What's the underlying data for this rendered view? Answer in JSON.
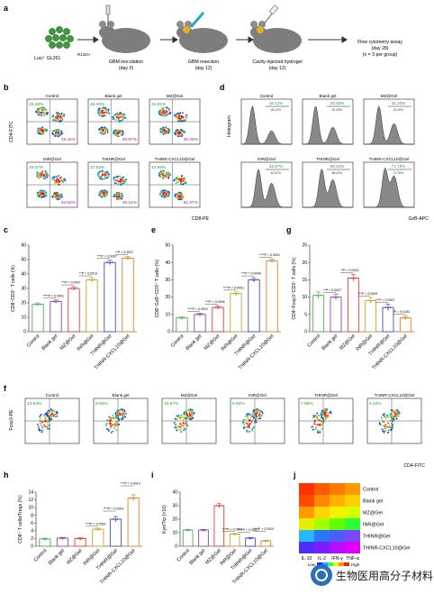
{
  "panel_letters": {
    "a": "a",
    "b": "b",
    "c": "c",
    "d": "d",
    "e": "e",
    "f": "f",
    "g": "g",
    "h": "h",
    "i": "i",
    "j": "j"
  },
  "schematic": {
    "cells_label": "Luci⁺ GL261",
    "cells_sup": "R132H",
    "steps": [
      {
        "title": "GBM inoculation",
        "sub": "(day 0)"
      },
      {
        "title": "GBM resection",
        "sub": "(day 12)"
      },
      {
        "title": "Cavity-injected hydrogel",
        "sub": "(day 12)"
      }
    ],
    "final_title": "Flow cytometry assay",
    "final_sub1": "(day 28)",
    "final_sub2": "(n = 3 per group)"
  },
  "flow_b": {
    "y_axis": "CD4-FITC",
    "x_axis": "CD8-PE",
    "plots": [
      {
        "title": "Control",
        "q_top": "25.28%",
        "q_bot": "19.42%"
      },
      {
        "title": "Blank gel",
        "q_top": "29.33%",
        "q_bot": "20.97%"
      },
      {
        "title": "MZ@Gel",
        "q_top": "31.81%",
        "q_bot": "30.26%"
      },
      {
        "title": "INR@Gel",
        "q_top": "34.07%",
        "q_bot": "34.50%"
      },
      {
        "title": "THINR@Gel",
        "q_top": "37.83%",
        "q_bot": "48.14%"
      },
      {
        "title": "THINR-CXCL10@Gel",
        "q_top": "42.68%",
        "q_bot": "51.67%"
      }
    ]
  },
  "hist_d": {
    "y_axis": "Histogram",
    "x_axis": "GzB-APC",
    "plots": [
      {
        "title": "Control",
        "top": "18.12%",
        "sub": "18.12%"
      },
      {
        "title": "Blank gel",
        "top": "20.43%",
        "sub": "20.43%"
      },
      {
        "title": "MZ@Gel",
        "top": "31.20%",
        "sub": "31.20%"
      },
      {
        "title": "INR@Gel",
        "top": "42.87%",
        "sub": "42.87%"
      },
      {
        "title": "THINR@Gel",
        "top": "58.42%",
        "sub": "58.42%"
      },
      {
        "title": "THINR-CXCL10@Gel",
        "top": "71.76%",
        "sub": "71.76%"
      }
    ]
  },
  "groups": [
    "Control",
    "Blank gel",
    "MZ@Gel",
    "INR@Gel",
    "THINR@Gel",
    "THINR-CXCL10@Gel"
  ],
  "colors": [
    "#4caf50",
    "#8e44ad",
    "#e53935",
    "#c9a227",
    "#3f51b5",
    "#e67e22"
  ],
  "chart_data": [
    {
      "type": "bar",
      "panel": "c",
      "ylabel": "CD8⁺CD3⁺ T cells (%)",
      "ylim": [
        0,
        60
      ],
      "yticks": [
        "0",
        "10",
        "20",
        "30",
        "40",
        "50",
        "60"
      ],
      "values": [
        19,
        21,
        30,
        36,
        48,
        51
      ],
      "errors": [
        1,
        1,
        1.2,
        1.5,
        1.5,
        1.2
      ],
      "pvalues": [
        "****P = 0.0001",
        "***P = 0.0007",
        "**P = 0.0013",
        "***P = 0.0067",
        "**P = 0.0037"
      ]
    },
    {
      "type": "bar",
      "panel": "e",
      "ylabel": "CD8⁺GzB⁺CD3⁺ T cells (%)",
      "ylim": [
        0,
        50
      ],
      "yticks": [
        "0",
        "10",
        "20",
        "30",
        "40",
        "50"
      ],
      "values": [
        8,
        10,
        14,
        22,
        30,
        41
      ],
      "errors": [
        0.5,
        0.6,
        0.8,
        1,
        1.2,
        1
      ],
      "pvalues": [
        "****P = 0.0001",
        "***P = 0.0006",
        "****P = 0.0001",
        "***P = 0.0008",
        "****P = 0.0001"
      ]
    },
    {
      "type": "bar",
      "panel": "g",
      "ylabel": "CD4⁺Foxp3⁺CD3⁺ T cells (%)",
      "ylim": [
        0,
        25
      ],
      "yticks": [
        "0",
        "5",
        "10",
        "15",
        "20",
        "25"
      ],
      "values": [
        10.5,
        10,
        15.5,
        9,
        7,
        4
      ],
      "errors": [
        1,
        0.8,
        1,
        0.8,
        1,
        0.5
      ],
      "pvalues": [
        "**P = 0.0027",
        "**P = 0.0022",
        "***P = 0.0009",
        "***P = 0.0007",
        "*P = 0.0193"
      ]
    },
    {
      "type": "bar",
      "panel": "h",
      "ylabel": "CD8⁺ T cells/Tregs (%)",
      "ylim": [
        0,
        14
      ],
      "yticks": [
        "0",
        "2",
        "4",
        "6",
        "8",
        "10",
        "12",
        "14"
      ],
      "values": [
        1.9,
        2.1,
        2,
        4.4,
        7,
        12.5
      ],
      "errors": [
        0.2,
        0.2,
        0.2,
        0.3,
        0.7,
        0.8
      ],
      "pvalues": [
        "****P = 0.0001",
        "****P = 0.0001",
        "***P = 0.0014"
      ]
    },
    {
      "type": "bar",
      "panel": "i",
      "ylabel": "Kyn/Trp (×10)",
      "ylim": [
        0,
        40
      ],
      "yticks": [
        "0",
        "10",
        "20",
        "30",
        "40"
      ],
      "values": [
        12,
        12,
        30,
        9,
        6,
        4
      ],
      "errors": [
        0.5,
        0.5,
        1.5,
        0.5,
        0.5,
        0.3
      ],
      "pvalues": [
        "****P < 0.0001",
        "****P < 0.0001",
        "****P = 0.0001"
      ]
    },
    {
      "type": "heatmap",
      "panel": "j",
      "columns": [
        "IL-10",
        "IL-2",
        "IFN-γ",
        "TNF-α"
      ],
      "rows": [
        "Control",
        "Blank gel",
        "MZ@Gel",
        "INR@Gel",
        "THINR@Gel",
        "THINR-CXCL10@Gel"
      ],
      "legend_low": "Low",
      "legend_high": "High",
      "colors": [
        [
          "#ff3300",
          "#ff5a00",
          "#ff7a00",
          "#ff9a00"
        ],
        [
          "#ff4a00",
          "#ff8800",
          "#ffb300",
          "#ffd000"
        ],
        [
          "#ff9900",
          "#ffd400",
          "#f5f000",
          "#d8ff00"
        ],
        [
          "#e5f000",
          "#a6ff00",
          "#63ff00",
          "#2cff3a"
        ],
        [
          "#28b8ff",
          "#2878ff",
          "#4a5dff",
          "#7a48ff"
        ],
        [
          "#4a30ff",
          "#7a1dff",
          "#b30fff",
          "#e000ff"
        ]
      ]
    }
  ],
  "flow_f": {
    "y_axis": "Foxp3-PE",
    "x_axis": "CD4-FITC",
    "plots": [
      {
        "title": "Control",
        "val": "13.84%"
      },
      {
        "title": "Blank gel",
        "val": "9.65%"
      },
      {
        "title": "MZ@Gel",
        "val": "15.87%"
      },
      {
        "title": "INR@Gel",
        "val": "8.60%"
      },
      {
        "title": "THINR@Gel",
        "val": "7.86%"
      },
      {
        "title": "THINR-CXCL10@Gel",
        "val": "4.34%"
      }
    ]
  },
  "watermark_text": "生物医用高分子材料"
}
